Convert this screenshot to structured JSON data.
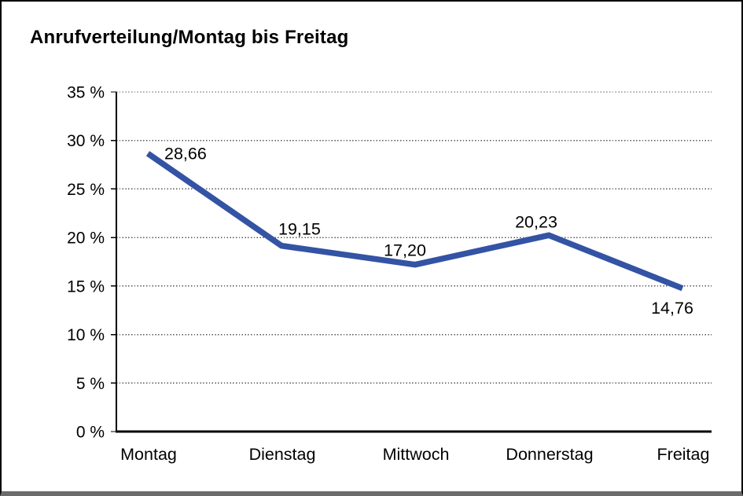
{
  "frame": {
    "background": "#ffffff",
    "border_color": "#000000",
    "bottom_bar_color": "#6b6b6b"
  },
  "chart_data": {
    "type": "line",
    "title": "Anrufverteilung/Montag bis Freitag",
    "categories": [
      "Montag",
      "Dienstag",
      "Mittwoch",
      "Donnerstag",
      "Freitag"
    ],
    "values": [
      28.66,
      19.15,
      17.2,
      20.23,
      14.76
    ],
    "value_labels": [
      "28,66",
      "19,15",
      "17,20",
      "20,23",
      "14,76"
    ],
    "y_ticks": [
      {
        "value": 0,
        "label": "0 %"
      },
      {
        "value": 5,
        "label": "5 %"
      },
      {
        "value": 10,
        "label": "10 %"
      },
      {
        "value": 15,
        "label": "15 %"
      },
      {
        "value": 20,
        "label": "20 %"
      },
      {
        "value": 25,
        "label": "25 %"
      },
      {
        "value": 30,
        "label": "30 %"
      },
      {
        "value": 35,
        "label": "35 %"
      }
    ],
    "ylim": [
      0,
      35
    ],
    "xlabel": "",
    "ylabel": "",
    "legend": "none",
    "grid": "horizontal-dotted",
    "line_color": "#3353a4",
    "text_color": "#000000",
    "grid_color": "#555555"
  }
}
